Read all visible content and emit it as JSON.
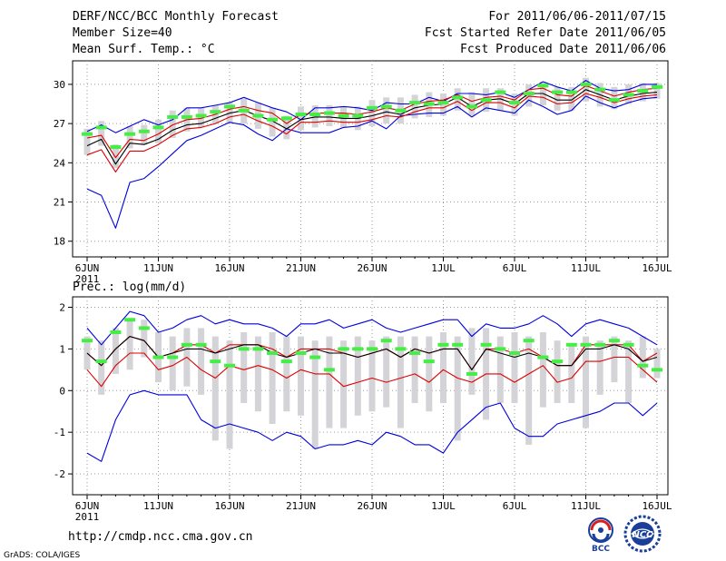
{
  "header": {
    "title": "DERF/NCC/BCC Monthly Forecast",
    "member_size": "Member Size=40",
    "variable": "Mean Surf. Temp.: °C",
    "period": "For 2011/06/06-2011/07/15",
    "started": "Fcst Started Refer Date 2011/06/05",
    "produced": "Fcst Produced Date 2011/06/06"
  },
  "footer": {
    "url": "http://cmdp.ncc.cma.gov.cn",
    "grads": "GrADS: COLA/IGES",
    "logo_left": "BCC",
    "logo_right": "NCC"
  },
  "colors": {
    "max_min": "#0000dd",
    "percentile": "#dd0000",
    "mean": "#000000",
    "observed": "#44ee44",
    "spread": "#d4d4d8"
  },
  "chart_data": [
    {
      "type": "line",
      "name": "temperature",
      "title": "Mean Surf. Temp.: °C",
      "ylim": [
        16.8,
        31.8
      ],
      "yticks": [
        18,
        21,
        24,
        27,
        30
      ],
      "x_tick_labels": [
        "6JUN",
        "11JUN",
        "16JUN",
        "21JUN",
        "26JUN",
        "1JUL",
        "6JUL",
        "11JUL",
        "16JUL"
      ],
      "x_tick_days": [
        0,
        5,
        10,
        15,
        20,
        25,
        30,
        35,
        40
      ],
      "year_label": "2011",
      "days": 40,
      "series": {
        "max": [
          26.4,
          26.9,
          26.3,
          26.8,
          27.3,
          26.9,
          27.3,
          28.2,
          28.2,
          28.4,
          28.6,
          29.0,
          28.6,
          28.2,
          27.9,
          27.3,
          28.2,
          28.2,
          28.3,
          28.2,
          28.0,
          28.6,
          28.5,
          28.5,
          29.0,
          28.7,
          29.3,
          29.3,
          29.2,
          29.4,
          29.0,
          29.6,
          30.2,
          29.8,
          29.5,
          30.3,
          29.7,
          29.5,
          29.6,
          30.0,
          30.0
        ],
        "p90": [
          25.9,
          26.1,
          24.4,
          25.8,
          25.7,
          26.2,
          26.9,
          27.3,
          27.4,
          27.7,
          28.1,
          28.3,
          28.0,
          27.8,
          27.0,
          27.7,
          27.8,
          27.8,
          27.8,
          27.7,
          27.9,
          28.2,
          28.0,
          28.5,
          28.7,
          28.8,
          29.2,
          28.7,
          29.0,
          29.1,
          28.8,
          29.6,
          29.7,
          29.2,
          29.1,
          29.9,
          29.5,
          29.1,
          29.4,
          29.6,
          29.7
        ],
        "mean": [
          25.3,
          25.8,
          23.9,
          25.5,
          25.4,
          25.8,
          26.5,
          26.9,
          27.0,
          27.4,
          27.8,
          28.0,
          27.6,
          27.2,
          26.6,
          27.3,
          27.5,
          27.5,
          27.4,
          27.4,
          27.6,
          27.9,
          27.7,
          28.2,
          28.4,
          28.5,
          29.0,
          28.3,
          28.8,
          28.9,
          28.5,
          29.3,
          29.3,
          28.8,
          28.8,
          29.6,
          29.2,
          28.8,
          29.1,
          29.3,
          29.4
        ],
        "p10": [
          24.6,
          25.0,
          23.3,
          24.9,
          24.9,
          25.4,
          26.1,
          26.6,
          26.7,
          27.0,
          27.5,
          27.7,
          27.2,
          26.8,
          26.2,
          27.1,
          27.1,
          27.2,
          27.1,
          27.1,
          27.3,
          27.6,
          27.5,
          27.9,
          28.2,
          28.2,
          28.7,
          28.0,
          28.6,
          28.6,
          28.2,
          29.1,
          29.0,
          28.5,
          28.6,
          29.3,
          29.0,
          28.6,
          28.9,
          29.1,
          29.2
        ],
        "min": [
          22.0,
          21.5,
          19.0,
          22.5,
          22.8,
          23.7,
          24.7,
          25.7,
          26.1,
          26.6,
          27.1,
          26.9,
          26.2,
          25.7,
          26.6,
          26.3,
          26.3,
          26.3,
          26.7,
          26.8,
          27.2,
          26.6,
          27.6,
          27.7,
          27.8,
          27.8,
          28.3,
          27.5,
          28.2,
          28.0,
          27.8,
          28.8,
          28.3,
          27.7,
          28.0,
          29.1,
          28.6,
          28.2,
          28.6,
          28.9,
          29.0
        ],
        "spread_hi": [
          26.6,
          27.2,
          25.4,
          26.8,
          26.9,
          27.3,
          28.0,
          28.2,
          28.2,
          28.4,
          28.6,
          28.9,
          28.6,
          28.2,
          27.6,
          28.3,
          28.4,
          28.4,
          28.3,
          28.3,
          28.8,
          29.0,
          29.0,
          29.2,
          29.4,
          29.3,
          29.7,
          29.4,
          29.7,
          29.7,
          29.3,
          30.0,
          30.2,
          29.8,
          29.8,
          30.5,
          30.1,
          29.8,
          30.0,
          30.1,
          30.1
        ],
        "spread_lo": [
          24.6,
          25.3,
          23.6,
          25.1,
          25.4,
          25.5,
          25.9,
          26.4,
          26.7,
          27.0,
          27.0,
          27.0,
          26.6,
          26.0,
          25.8,
          26.5,
          26.7,
          26.8,
          26.7,
          26.5,
          26.8,
          27.0,
          27.0,
          27.4,
          27.5,
          27.6,
          28.0,
          27.6,
          27.9,
          28.0,
          27.6,
          28.3,
          28.4,
          28.0,
          28.0,
          28.7,
          28.3,
          28.1,
          28.5,
          28.7,
          28.9
        ],
        "observed": [
          26.2,
          26.7,
          25.2,
          26.2,
          26.4,
          26.7,
          27.5,
          27.5,
          27.6,
          27.9,
          28.3,
          28.0,
          27.6,
          27.3,
          27.4,
          27.7,
          27.7,
          27.8,
          27.6,
          27.6,
          28.2,
          28.3,
          28.0,
          28.6,
          28.5,
          28.6,
          29.0,
          28.3,
          28.8,
          29.4,
          28.6,
          29.3,
          29.9,
          29.4,
          29.4,
          30.0,
          29.6,
          28.8,
          29.2,
          29.5,
          29.8
        ]
      }
    },
    {
      "type": "line",
      "name": "precipitation",
      "title": "Prec.: log(mm/d)",
      "ylim": [
        -2.5,
        2.25
      ],
      "yticks": [
        -2,
        -1,
        0,
        1,
        2
      ],
      "x_tick_labels": [
        "6JUN",
        "11JUN",
        "16JUN",
        "21JUN",
        "26JUN",
        "1JUL",
        "6JUL",
        "11JUL",
        "16JUL"
      ],
      "x_tick_days": [
        0,
        5,
        10,
        15,
        20,
        25,
        30,
        35,
        40
      ],
      "year_label": "2011",
      "days": 40,
      "series": {
        "max": [
          1.5,
          1.1,
          1.5,
          1.9,
          1.8,
          1.4,
          1.5,
          1.7,
          1.8,
          1.6,
          1.7,
          1.6,
          1.6,
          1.5,
          1.3,
          1.6,
          1.6,
          1.7,
          1.5,
          1.6,
          1.7,
          1.5,
          1.4,
          1.5,
          1.6,
          1.7,
          1.7,
          1.3,
          1.6,
          1.5,
          1.5,
          1.6,
          1.8,
          1.6,
          1.3,
          1.6,
          1.7,
          1.6,
          1.5,
          1.3,
          1.1
        ],
        "p90": [
          0.9,
          0.6,
          1.0,
          1.3,
          1.2,
          0.8,
          0.9,
          1.1,
          1.1,
          0.9,
          1.1,
          1.1,
          1.1,
          1.0,
          0.8,
          1.0,
          1.0,
          1.0,
          0.9,
          0.8,
          0.9,
          1.0,
          0.8,
          1.0,
          0.9,
          1.0,
          1.0,
          0.5,
          1.0,
          1.0,
          0.9,
          1.0,
          0.8,
          0.6,
          0.6,
          1.1,
          1.1,
          1.1,
          1.1,
          0.7,
          0.9
        ],
        "mean": [
          0.9,
          0.6,
          1.0,
          1.3,
          1.2,
          0.8,
          0.9,
          1.0,
          1.0,
          0.9,
          1.0,
          1.1,
          1.1,
          0.9,
          0.8,
          0.9,
          1.0,
          0.9,
          0.9,
          0.8,
          0.9,
          1.0,
          0.8,
          1.0,
          0.9,
          1.0,
          1.0,
          0.5,
          1.0,
          0.9,
          0.8,
          0.9,
          0.8,
          0.6,
          0.6,
          1.0,
          1.0,
          1.1,
          1.0,
          0.7,
          0.8
        ],
        "p10": [
          0.5,
          0.1,
          0.6,
          0.9,
          0.9,
          0.5,
          0.6,
          0.8,
          0.5,
          0.3,
          0.6,
          0.5,
          0.6,
          0.5,
          0.3,
          0.5,
          0.4,
          0.4,
          0.1,
          0.2,
          0.3,
          0.2,
          0.3,
          0.4,
          0.2,
          0.5,
          0.3,
          0.2,
          0.4,
          0.4,
          0.2,
          0.4,
          0.6,
          0.2,
          0.3,
          0.7,
          0.7,
          0.8,
          0.8,
          0.5,
          0.2
        ],
        "min": [
          -1.5,
          -1.7,
          -0.7,
          -0.1,
          0.0,
          -0.1,
          -0.1,
          -0.1,
          -0.7,
          -0.9,
          -0.8,
          -0.9,
          -1.0,
          -1.2,
          -1.0,
          -1.1,
          -1.4,
          -1.3,
          -1.3,
          -1.2,
          -1.3,
          -1.0,
          -1.1,
          -1.3,
          -1.3,
          -1.5,
          -1.0,
          -0.7,
          -0.4,
          -0.3,
          -0.9,
          -1.1,
          -1.1,
          -0.8,
          -0.7,
          -0.6,
          -0.5,
          -0.3,
          -0.3,
          -0.6,
          -0.3
        ],
        "spread_hi": [
          1.3,
          1.2,
          1.5,
          1.7,
          1.7,
          1.4,
          1.3,
          1.5,
          1.5,
          1.3,
          1.2,
          1.4,
          1.3,
          1.4,
          1.3,
          1.3,
          1.2,
          1.3,
          1.2,
          1.3,
          1.2,
          1.3,
          1.3,
          1.3,
          1.3,
          1.4,
          1.3,
          1.5,
          1.5,
          1.3,
          1.4,
          1.3,
          1.4,
          1.2,
          1.1,
          1.3,
          1.2,
          1.3,
          1.2,
          1.3,
          1.0
        ],
        "spread_lo": [
          0.5,
          -0.1,
          0.4,
          0.5,
          0.8,
          0.2,
          0.0,
          0.1,
          -0.1,
          -1.2,
          -1.4,
          -0.3,
          -0.5,
          -0.8,
          -0.5,
          -0.6,
          -1.4,
          -0.9,
          -0.9,
          -0.6,
          -0.5,
          -0.4,
          -0.9,
          -0.3,
          -0.5,
          -0.3,
          -1.2,
          -0.1,
          -0.7,
          -0.3,
          -0.3,
          -1.3,
          -0.4,
          -0.3,
          -0.3,
          -0.9,
          -0.1,
          0.2,
          -0.3,
          0.3,
          0.3
        ],
        "observed": [
          1.2,
          0.7,
          1.4,
          1.7,
          1.5,
          0.8,
          0.8,
          1.1,
          1.1,
          0.7,
          0.6,
          1.0,
          1.0,
          0.9,
          0.7,
          0.9,
          0.8,
          0.5,
          1.0,
          1.0,
          1.0,
          1.2,
          1.0,
          0.9,
          0.7,
          1.1,
          1.1,
          0.4,
          1.1,
          1.0,
          0.9,
          1.2,
          0.8,
          0.7,
          1.1,
          1.1,
          1.1,
          1.2,
          1.1,
          0.6,
          0.5
        ]
      }
    }
  ]
}
